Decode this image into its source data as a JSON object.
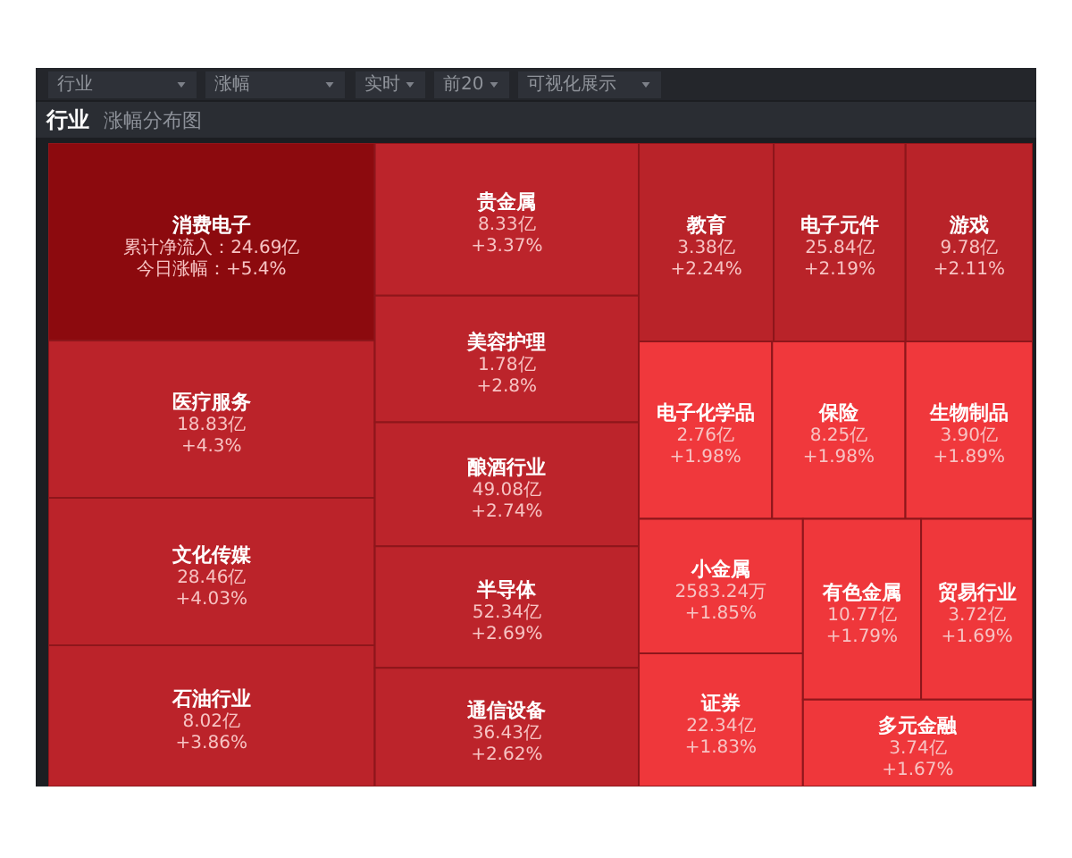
{
  "chart_data": {
    "type": "other",
    "title": "行业",
    "subtitle": "涨幅分布图",
    "annotations": [
      "行业",
      "涨幅",
      "实时",
      "前20",
      "可视化展示"
    ],
    "categories": [
      "消费电子",
      "医疗服务",
      "文化传媒",
      "石油行业",
      "贵金属",
      "美容护理",
      "酿酒行业",
      "半导体",
      "通信设备",
      "教育",
      "电子元件",
      "游戏",
      "电子化学品",
      "保险",
      "生物制品",
      "小金属",
      "证券",
      "有色金属",
      "贸易行业",
      "多元金融"
    ],
    "series": [
      {
        "values": [
          5.4,
          4.3,
          4.03,
          3.86,
          3.37,
          2.8,
          2.74,
          2.69,
          2.62,
          2.24,
          2.19,
          2.11,
          1.98,
          1.98,
          1.89,
          1.85,
          1.83,
          1.79,
          1.69,
          1.67
        ],
        "value_labels": [
          "今日涨幅：+5.4%",
          "+4.3%",
          "+4.03%",
          "+3.86%",
          "+3.37%",
          "+2.8%",
          "+2.74%",
          "+2.69%",
          "+2.62%",
          "+2.24%",
          "+2.19%",
          "+2.11%",
          "+1.98%",
          "+1.98%",
          "+1.89%",
          "+1.85%",
          "+1.83%",
          "+1.79%",
          "+1.69%",
          "+1.67%"
        ],
        "colors": [
          "#8c0a0e",
          "#bb232a",
          "#bb232a",
          "#bb232a",
          "#bc242b",
          "#bc242b",
          "#bc242b",
          "#bc242b",
          "#bc242b",
          "#b92329",
          "#b92329",
          "#b92329",
          "#f0383c",
          "#f0383c",
          "#f0383c",
          "#ef373b",
          "#ef373b",
          "#ef373b",
          "#ef373b",
          "#ef373b"
        ]
      },
      {
        "values": [
          24.69,
          18.83,
          28.46,
          8.02,
          8.33,
          1.78,
          49.08,
          52.34,
          36.43,
          3.38,
          25.84,
          9.78,
          2.76,
          8.25,
          3.9,
          2583.24,
          22.34,
          10.77,
          3.72,
          3.74
        ],
        "value_labels": [
          "累计净流入：24.69亿",
          "18.83亿",
          "28.46亿",
          "8.02亿",
          "8.33亿",
          "1.78亿",
          "49.08亿",
          "52.34亿",
          "36.43亿",
          "3.38亿",
          "25.84亿",
          "9.78亿",
          "2.76亿",
          "8.25亿",
          "3.90亿",
          "2583.24万",
          "22.34亿",
          "10.77亿",
          "3.72亿",
          "3.74亿"
        ]
      }
    ]
  }
}
